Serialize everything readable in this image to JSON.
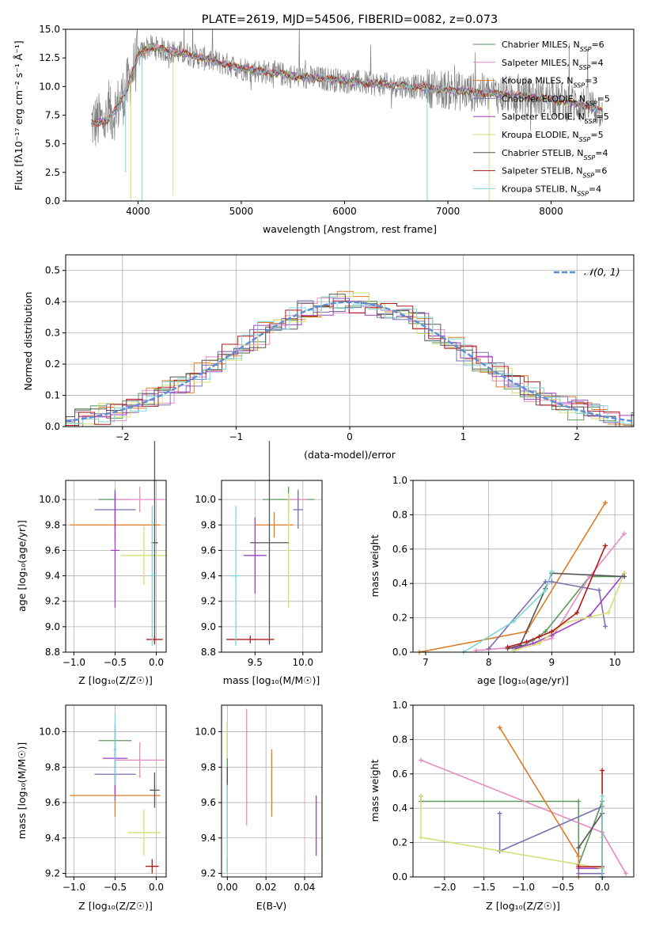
{
  "colors": [
    "#5b9a5b",
    "#e78ac3",
    "#e07b24",
    "#7c6fb0",
    "#9e3fc4",
    "#d6df74",
    "#555555",
    "#b31b1b",
    "#7ad7d7"
  ],
  "panel_a": {
    "title": "PLATE=2619, MJD=54506, FIBERID=0082, z=0.073",
    "xlabel": "wavelength [Angstrom, rest frame]",
    "ylabel": "Flux [fλ10⁻¹⁷ erg cm⁻² s⁻¹ Å⁻¹]",
    "xticks": [
      "4000",
      "5000",
      "6000",
      "7000",
      "8000"
    ],
    "yticks": [
      "0.0",
      "2.5",
      "5.0",
      "7.5",
      "10.0",
      "12.5",
      "15.0"
    ],
    "legend": [
      "Chabrier MILES, N_SSP=6",
      "Salpeter MILES, N_SSP=4",
      "Kroupa MILES, N_SSP=3",
      "Chabrier ELODIE, N_SSP=5",
      "Salpeter ELODIE, N_SSP=5",
      "Kroupa ELODIE, N_SSP=5",
      "Chabrier STELIB, N_SSP=4",
      "Salpeter STELIB, N_SSP=6",
      "Kroupa STELIB, N_SSP=4"
    ]
  },
  "panel_b": {
    "xlabel": "(data-model)/error",
    "ylabel": "Normed distribution",
    "legend": "𝒩(0, 1)",
    "xticks": [
      "−2",
      "−1",
      "0",
      "1",
      "2"
    ],
    "yticks": [
      "0.0",
      "0.1",
      "0.2",
      "0.3",
      "0.4",
      "0.5"
    ]
  },
  "panel_c": {
    "xlabel": "Z [log₁₀(Z/Z☉)]",
    "ylabel": "age  [log₁₀(age/yr)]",
    "xticks": [
      "−1.0",
      "−0.5",
      "0.0"
    ],
    "yticks": [
      "8.8",
      "9.0",
      "9.2",
      "9.4",
      "9.6",
      "9.8",
      "10.0"
    ]
  },
  "panel_d": {
    "xlabel": "mass [log₁₀(M/M☉)]",
    "xticks": [
      "9.5",
      "10.0"
    ],
    "yticks": [
      "8.8",
      "9.0",
      "9.2",
      "9.4",
      "9.6",
      "9.8",
      "10.0"
    ]
  },
  "panel_e": {
    "xlabel": "age  [log₁₀(age/yr)]",
    "ylabel": "mass weight",
    "xticks": [
      "7",
      "8",
      "9",
      "10"
    ],
    "yticks": [
      "0.0",
      "0.2",
      "0.4",
      "0.6",
      "0.8",
      "1.0"
    ]
  },
  "panel_f": {
    "xlabel": "Z [log₁₀(Z/Z☉)]",
    "ylabel": "mass [log₁₀(M/M☉)]",
    "xticks": [
      "−1.0",
      "−0.5",
      "0.0"
    ],
    "yticks": [
      "9.2",
      "9.4",
      "9.6",
      "9.8",
      "10.0"
    ]
  },
  "panel_g": {
    "xlabel": "E(B-V)",
    "xticks": [
      "0.00",
      "0.02",
      "0.04"
    ],
    "yticks": [
      "9.2",
      "9.4",
      "9.6",
      "9.8",
      "10.0"
    ]
  },
  "panel_h": {
    "xlabel": "Z [log₁₀(Z/Z☉)]",
    "ylabel": "mass weight",
    "xticks": [
      "−2.0",
      "−1.5",
      "−1.0",
      "−0.5",
      "0.0"
    ],
    "yticks": [
      "0.0",
      "0.2",
      "0.4",
      "0.6",
      "0.8",
      "1.0"
    ]
  },
  "chart_data": [
    {
      "type": "line",
      "title": "PLATE=2619, MJD=54506, FIBERID=0082, z=0.073",
      "xlabel": "wavelength [Angstrom, rest frame]",
      "ylabel": "Flux [fλ10⁻¹⁷ erg cm⁻² s⁻¹ Å⁻¹]",
      "xlim": [
        3300,
        8800
      ],
      "ylim": [
        0,
        15
      ],
      "grid": false,
      "legend_position": "top-right",
      "continuum": {
        "x": [
          3550,
          3700,
          3800,
          3900,
          4000,
          4100,
          4300,
          4500,
          4700,
          5000,
          5300,
          5600,
          5900,
          6200,
          6500,
          6800,
          7100,
          7400,
          7700,
          8000,
          8300,
          8500
        ],
        "y": [
          6.8,
          7.0,
          8.2,
          10.0,
          12.6,
          13.5,
          13.1,
          12.8,
          12.3,
          11.6,
          11.2,
          10.8,
          10.6,
          10.3,
          10.1,
          9.9,
          9.6,
          9.4,
          9.2,
          8.9,
          8.4,
          8.0
        ]
      },
      "series": [
        {
          "name": "Chabrier MILES, N_SSP=6"
        },
        {
          "name": "Salpeter MILES, N_SSP=4"
        },
        {
          "name": "Kroupa MILES, N_SSP=3"
        },
        {
          "name": "Chabrier ELODIE, N_SSP=5"
        },
        {
          "name": "Salpeter ELODIE, N_SSP=5"
        },
        {
          "name": "Kroupa ELODIE, N_SSP=5"
        },
        {
          "name": "Chabrier STELIB, N_SSP=4"
        },
        {
          "name": "Salpeter STELIB, N_SSP=6"
        },
        {
          "name": "Kroupa STELIB, N_SSP=4"
        }
      ]
    },
    {
      "type": "bar",
      "xlabel": "(data-model)/error",
      "ylabel": "Normed distribution",
      "xlim": [
        -2.5,
        2.5
      ],
      "ylim": [
        0,
        0.55
      ],
      "grid": true,
      "bin_width": 0.14,
      "reference_curve": {
        "name": "𝒩(0, 1)",
        "mean": 0,
        "sigma": 1
      }
    },
    {
      "type": "scatter",
      "xlabel": "Z [log₁₀(Z/Z☉)]",
      "ylabel": "age  [log₁₀(age/yr)]",
      "xlim": [
        -1.1,
        0.12
      ],
      "ylim": [
        8.8,
        10.15
      ],
      "grid": true,
      "points": [
        {
          "x": -0.5,
          "y": 10.0,
          "xerr": 0.2,
          "yerr": 0.08
        },
        {
          "x": -0.2,
          "y": 10.0,
          "xerr": 0.3,
          "yerr": 0.1
        },
        {
          "x": -0.5,
          "y": 9.8,
          "xerr": 0.55,
          "yerr": 0.12
        },
        {
          "x": -0.5,
          "y": 9.92,
          "xerr": 0.25,
          "yerr": 0.15
        },
        {
          "x": -0.5,
          "y": 9.6,
          "xerr": 0.05,
          "yerr": 0.45
        },
        {
          "x": -0.15,
          "y": 9.56,
          "xerr": 0.28,
          "yerr": 0.23
        },
        {
          "x": -0.02,
          "y": 9.66,
          "xerr": 0.04,
          "yerr": 0.8
        },
        {
          "x": -0.02,
          "y": 8.9,
          "xerr": 0.1,
          "yerr": 0.03
        },
        {
          "x": -0.05,
          "y": 9.4,
          "xerr": 0.03,
          "yerr": 0.55
        }
      ]
    },
    {
      "type": "scatter",
      "xlabel": "mass [log₁₀(M/M☉)]",
      "xlim": [
        9.15,
        10.2
      ],
      "ylim": [
        8.8,
        10.15
      ],
      "grid": true,
      "points": [
        {
          "x": 9.85,
          "y": 10.0,
          "xerr": 0.27,
          "yerr": 0.1
        },
        {
          "x": 9.95,
          "y": 10.0,
          "xerr": 0.1,
          "yerr": 0.08
        },
        {
          "x": 9.7,
          "y": 9.8,
          "xerr": 0.2,
          "yerr": 0.1
        },
        {
          "x": 9.95,
          "y": 9.92,
          "xerr": 0.05,
          "yerr": 0.15
        },
        {
          "x": 9.5,
          "y": 9.56,
          "xerr": 0.12,
          "yerr": 0.3
        },
        {
          "x": 9.85,
          "y": 9.6,
          "xerr": 0.02,
          "yerr": 0.45
        },
        {
          "x": 9.65,
          "y": 9.66,
          "xerr": 0.2,
          "yerr": 0.8
        },
        {
          "x": 9.45,
          "y": 8.9,
          "xerr": 0.25,
          "yerr": 0.03
        },
        {
          "x": 9.3,
          "y": 9.4,
          "xerr": 0.05,
          "yerr": 0.55
        }
      ]
    },
    {
      "type": "line",
      "xlabel": "age  [log₁₀(age/yr)]",
      "ylabel": "mass weight",
      "xlim": [
        6.8,
        10.3
      ],
      "ylim": [
        0,
        1
      ],
      "grid": true,
      "series": [
        {
          "x": [
            8.4,
            8.7,
            8.9,
            9.6,
            10.15
          ],
          "y": [
            0.01,
            0.07,
            0.12,
            0.44,
            0.44
          ]
        },
        {
          "x": [
            7.8,
            8.5,
            9.0,
            9.6,
            10.15
          ],
          "y": [
            0.01,
            0.03,
            0.08,
            0.44,
            0.69
          ]
        },
        {
          "x": [
            6.9,
            8.6,
            9.85
          ],
          "y": [
            0.0,
            0.12,
            0.87
          ]
        },
        {
          "x": [
            8.0,
            8.9,
            9.0,
            9.75,
            9.85
          ],
          "y": [
            0.02,
            0.41,
            0.41,
            0.36,
            0.15
          ]
        },
        {
          "x": [
            8.4,
            8.7,
            9.0,
            9.6,
            10.15
          ],
          "y": [
            0.02,
            0.05,
            0.1,
            0.21,
            0.46
          ]
        },
        {
          "x": [
            8.4,
            8.8,
            9.2,
            9.9,
            10.15
          ],
          "y": [
            0.01,
            0.05,
            0.17,
            0.23,
            0.46
          ]
        },
        {
          "x": [
            8.3,
            8.5,
            8.9,
            9.0,
            10.15
          ],
          "y": [
            0.02,
            0.04,
            0.37,
            0.46,
            0.44
          ]
        },
        {
          "x": [
            8.3,
            8.6,
            8.8,
            9.0,
            9.4,
            9.85
          ],
          "y": [
            0.03,
            0.06,
            0.09,
            0.12,
            0.23,
            0.62
          ]
        },
        {
          "x": [
            7.6,
            8.4,
            8.9,
            9.0
          ],
          "y": [
            0.0,
            0.18,
            0.36,
            0.47
          ]
        }
      ]
    },
    {
      "type": "scatter",
      "xlabel": "Z [log₁₀(Z/Z☉)]",
      "ylabel": "mass [log₁₀(M/M☉)]",
      "xlim": [
        -1.1,
        0.12
      ],
      "ylim": [
        9.18,
        10.15
      ],
      "grid": true,
      "points": [
        {
          "x": -0.5,
          "y": 9.95,
          "xerr": 0.2,
          "yerr": 0.08
        },
        {
          "x": -0.2,
          "y": 9.84,
          "xerr": 0.3,
          "yerr": 0.1
        },
        {
          "x": -0.5,
          "y": 9.64,
          "xerr": 0.55,
          "yerr": 0.12
        },
        {
          "x": -0.5,
          "y": 9.76,
          "xerr": 0.25,
          "yerr": 0.15
        },
        {
          "x": -0.5,
          "y": 9.85,
          "xerr": 0.15,
          "yerr": 0.2
        },
        {
          "x": -0.15,
          "y": 9.43,
          "xerr": 0.2,
          "yerr": 0.13
        },
        {
          "x": -0.02,
          "y": 9.67,
          "xerr": 0.06,
          "yerr": 0.1
        },
        {
          "x": -0.05,
          "y": 9.24,
          "xerr": 0.08,
          "yerr": 0.04
        },
        {
          "x": -0.5,
          "y": 9.9,
          "xerr": 0.02,
          "yerr": 0.2
        }
      ]
    },
    {
      "type": "scatter",
      "xlabel": "E(B-V)",
      "xlim": [
        -0.003,
        0.049
      ],
      "ylim": [
        9.18,
        10.15
      ],
      "grid": true,
      "points": [
        {
          "x": 0.0,
          "y": 9.9,
          "yerr": 0.15
        },
        {
          "x": 0.01,
          "y": 9.8,
          "yerr": 0.33
        },
        {
          "x": 0.023,
          "y": 9.71,
          "yerr": 0.19
        },
        {
          "x": 0.0,
          "y": 9.6,
          "yerr": 0.2
        },
        {
          "x": 0.046,
          "y": 9.47,
          "yerr": 0.17
        },
        {
          "x": 0.0,
          "y": 9.95,
          "yerr": 0.1
        },
        {
          "x": 0.0,
          "y": 9.7,
          "yerr": 0.1
        },
        {
          "x": 0.0,
          "y": 9.25,
          "yerr": 0.04
        },
        {
          "x": 0.0,
          "y": 9.45,
          "yerr": 0.25
        }
      ]
    },
    {
      "type": "line",
      "xlabel": "Z [log₁₀(Z/Z☉)]",
      "ylabel": "mass weight",
      "xlim": [
        -2.4,
        0.4
      ],
      "ylim": [
        0,
        1
      ],
      "grid": true,
      "series": [
        {
          "x": [
            -2.3,
            -2.3,
            -0.3,
            -0.3,
            0.0
          ],
          "y": [
            0.47,
            0.44,
            0.44,
            0.07,
            0.44
          ]
        },
        {
          "x": [
            -2.3,
            0.0,
            0.3
          ],
          "y": [
            0.68,
            0.26,
            0.02
          ]
        },
        {
          "x": [
            -1.3,
            -0.3,
            -0.3
          ],
          "y": [
            0.87,
            0.12,
            0.0
          ]
        },
        {
          "x": [
            -1.3,
            -1.3,
            0.0,
            0.0,
            -0.3
          ],
          "y": [
            0.37,
            0.15,
            0.41,
            0.02,
            0.02
          ]
        },
        {
          "x": [
            -0.3,
            0.0,
            0.0
          ],
          "y": [
            0.05,
            0.05,
            0.0
          ]
        },
        {
          "x": [
            -2.3,
            -2.3,
            0.0,
            0.0
          ],
          "y": [
            0.47,
            0.23,
            0.05,
            0.23
          ]
        },
        {
          "x": [
            -0.3,
            0.0,
            0.0
          ],
          "y": [
            0.17,
            0.37,
            0.0
          ]
        },
        {
          "x": [
            -0.3,
            0.0,
            0.0
          ],
          "y": [
            0.06,
            0.06,
            0.62
          ]
        },
        {
          "x": [
            0.0,
            0.0
          ],
          "y": [
            0.0,
            0.47
          ]
        }
      ]
    }
  ]
}
